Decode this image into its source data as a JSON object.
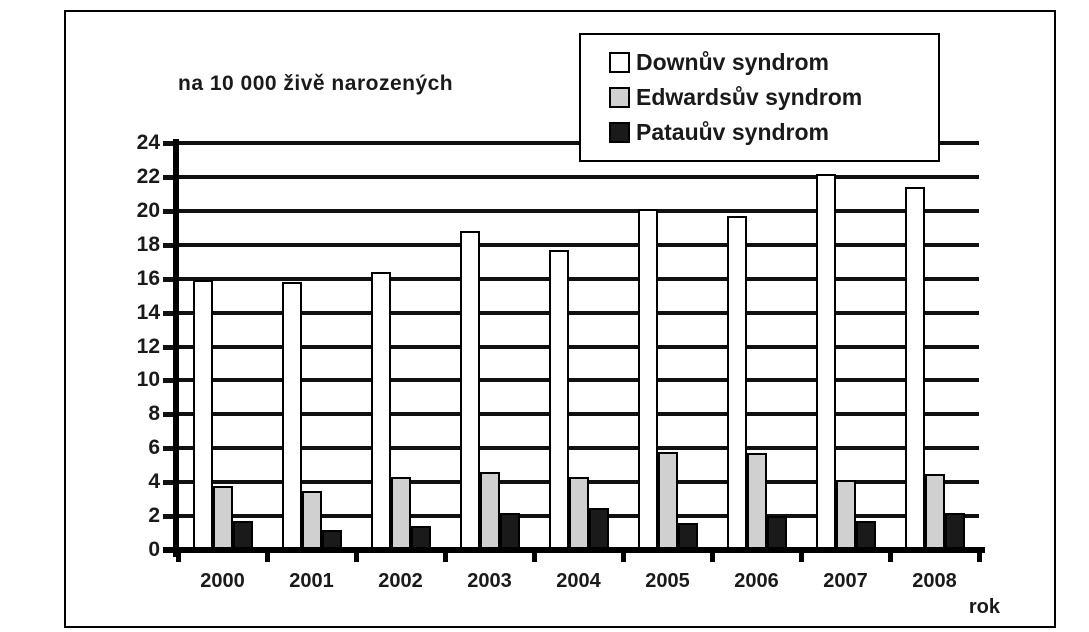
{
  "chart_data": {
    "type": "bar",
    "title": "na 10 000 živě narozených",
    "xlabel": "rok",
    "categories": [
      "2000",
      "2001",
      "2002",
      "2003",
      "2004",
      "2005",
      "2006",
      "2007",
      "2008"
    ],
    "series": [
      {
        "name": "Downův syndrom",
        "color": "#ffffff",
        "values": [
          15.9,
          15.8,
          16.4,
          18.8,
          17.7,
          20.1,
          19.7,
          22.2,
          21.4
        ]
      },
      {
        "name": "Edwardsův syndrom",
        "color": "#d0d0d0",
        "values": [
          3.8,
          3.5,
          4.3,
          4.6,
          4.3,
          5.8,
          5.7,
          4.1,
          4.5
        ]
      },
      {
        "name": "Patauův syndrom",
        "color": "#1a1a1a",
        "values": [
          1.7,
          1.2,
          1.4,
          2.2,
          2.5,
          1.6,
          2.0,
          1.7,
          2.2
        ]
      }
    ],
    "ylim": [
      0,
      24
    ],
    "yticks": [
      0,
      2,
      4,
      6,
      8,
      10,
      12,
      14,
      16,
      18,
      20,
      22,
      24
    ],
    "grid": true,
    "legend_position": "top-right",
    "colors": {
      "axis": "#000000",
      "gridline": "#111111",
      "text": "#1a1a1a",
      "frame_border": "#000000"
    }
  }
}
